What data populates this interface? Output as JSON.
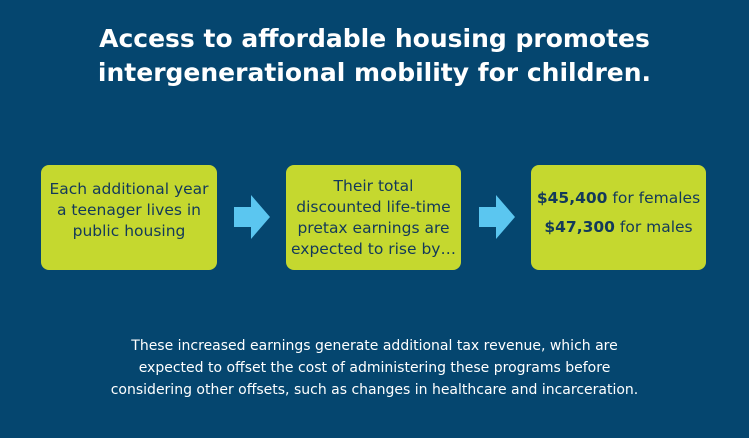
{
  "title": {
    "line1": "Access to affordable housing promotes",
    "line2": "intergenerational mobility for children."
  },
  "steps": [
    {
      "lines": [
        "Each additional year",
        "a teenager lives in",
        "public housing"
      ]
    },
    {
      "lines": [
        "Their total",
        "discounted life-time",
        "pretax earnings are",
        "expected to rise by…"
      ]
    },
    {
      "results": [
        {
          "amount": "$45,400",
          "label": " for females"
        },
        {
          "amount": "$47,300",
          "label": " for males"
        }
      ]
    }
  ],
  "colors": {
    "background": "#05466f",
    "box_fill": "#c5d82f",
    "box_text": "#13395a",
    "arrow": "#5bc6f0"
  },
  "icons": {
    "arrow": "arrow-right-icon"
  },
  "footer": {
    "line1": "These increased earnings generate additional tax revenue, which are",
    "line2": "expected to offset the cost of administering these programs before",
    "line3": "considering other offsets, such as changes in healthcare and incarceration."
  }
}
